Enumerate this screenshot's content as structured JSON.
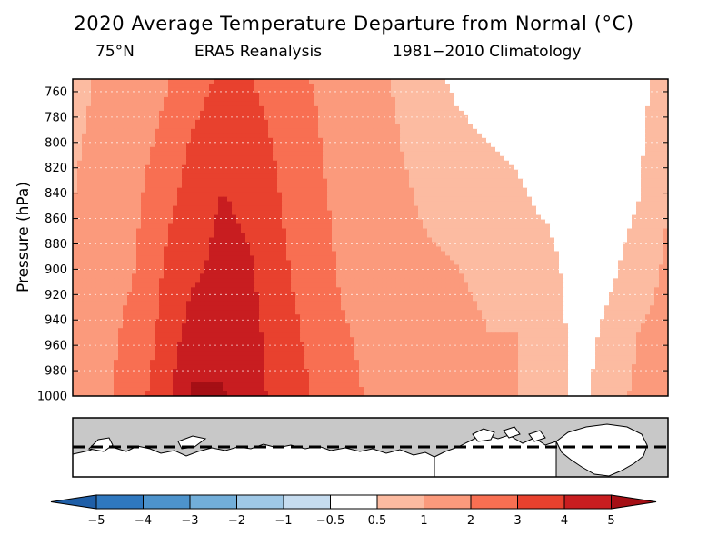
{
  "title": "2020 Average Temperature Departure from Normal (°C)",
  "subtitle": {
    "latitude": "75°N",
    "dataset": "ERA5 Reanalysis",
    "climatology": "1981−2010 Climatology"
  },
  "colors": {
    "lt_m5": "#1f5fa8",
    "m5_m4": "#2f78bf",
    "m4_m3": "#4d93cc",
    "m3_m2": "#72aed9",
    "m2_m1": "#9fc8e6",
    "m1_m05": "#c6dcef",
    "neutral": "#ffffff",
    "p05_1": "#fcbba1",
    "p1_2": "#fb9a7c",
    "p2_3": "#f86f52",
    "p3_4": "#e8412e",
    "p4_5": "#c81d20",
    "gt_5": "#a50f15",
    "land": "#ffffff",
    "ocean": "#c8c8c8"
  },
  "chart_data": {
    "type": "heatmap",
    "title": "2020 Average Temperature Departure from Normal (°C)",
    "ylabel": "Pressure (hPa)",
    "xlabel": "",
    "ylim": [
      1000,
      750
    ],
    "yticks": [
      760,
      780,
      800,
      820,
      840,
      860,
      880,
      900,
      920,
      940,
      960,
      980,
      1000
    ],
    "grid": true,
    "colorbar": {
      "levels": [
        "−5",
        "−4",
        "−3",
        "−2",
        "−1",
        "−0.5",
        "0.5",
        "1",
        "2",
        "3",
        "4",
        "5"
      ],
      "extend": "both"
    },
    "pressure_levels": [
      750,
      800,
      850,
      900,
      950,
      1000
    ],
    "longitude_fraction": [
      0.0,
      0.05,
      0.1,
      0.15,
      0.2,
      0.25,
      0.3,
      0.35,
      0.4,
      0.45,
      0.5,
      0.55,
      0.6,
      0.65,
      0.7,
      0.75,
      0.8,
      0.85,
      0.9,
      0.95,
      1.0
    ],
    "values": [
      [
        0.8,
        1.1,
        1.4,
        1.8,
        2.5,
        3.2,
        3.0,
        2.6,
        2.0,
        1.5,
        1.2,
        0.9,
        0.6,
        0.4,
        0.3,
        0.2,
        0.2,
        0.1,
        0.1,
        0.3,
        0.8
      ],
      [
        0.9,
        1.2,
        1.5,
        2.2,
        3.1,
        3.6,
        3.4,
        2.8,
        2.2,
        1.6,
        1.3,
        1.0,
        0.8,
        0.6,
        0.5,
        0.4,
        0.2,
        0.1,
        0.2,
        0.4,
        0.9
      ],
      [
        1.0,
        1.3,
        1.7,
        2.7,
        3.4,
        4.1,
        3.8,
        3.0,
        2.3,
        1.8,
        1.4,
        1.1,
        0.9,
        0.8,
        0.7,
        0.6,
        0.4,
        0.1,
        0.3,
        0.5,
        1.0
      ],
      [
        1.1,
        1.5,
        1.9,
        3.0,
        3.8,
        4.3,
        4.1,
        3.2,
        2.5,
        1.9,
        1.6,
        1.3,
        1.1,
        1.0,
        0.9,
        0.8,
        0.7,
        0.2,
        0.4,
        0.7,
        1.1
      ],
      [
        1.2,
        1.6,
        2.3,
        3.2,
        4.4,
        4.6,
        4.3,
        3.4,
        2.8,
        2.1,
        1.8,
        1.4,
        1.2,
        1.1,
        1.0,
        1.0,
        0.8,
        0.3,
        0.6,
        1.0,
        1.2
      ],
      [
        1.3,
        1.7,
        2.6,
        3.4,
        5.2,
        5.1,
        4.4,
        3.6,
        3.0,
        2.3,
        1.9,
        1.6,
        1.3,
        1.2,
        1.1,
        1.0,
        0.9,
        0.3,
        0.8,
        1.1,
        1.3
      ]
    ]
  }
}
